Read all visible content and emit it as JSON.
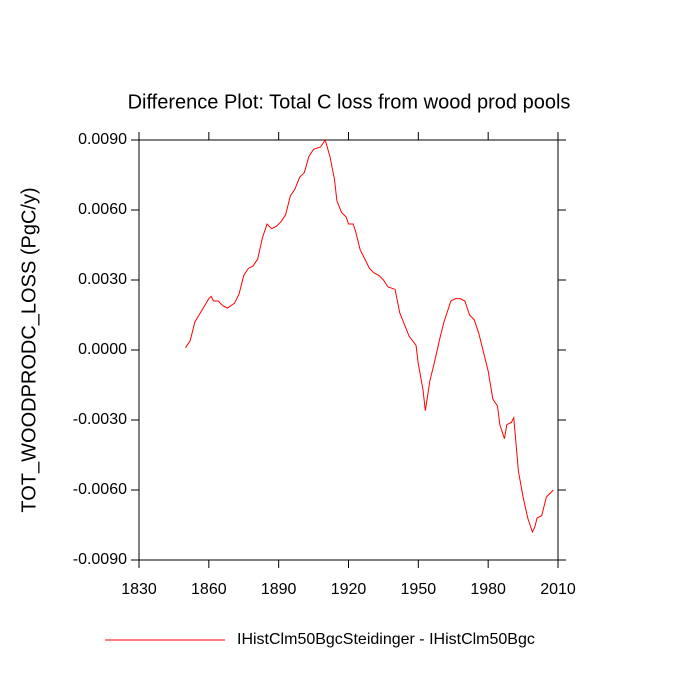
{
  "chart_data": {
    "type": "line",
    "title": "Difference Plot: Total C loss from wood prod pools",
    "y_label": "TOT_WOODPRODC_LOSS  (PgC/y)",
    "x": [
      1850,
      1852,
      1854,
      1857,
      1860,
      1861,
      1862,
      1864,
      1866,
      1868,
      1871,
      1873,
      1875,
      1877,
      1879,
      1881,
      1883,
      1885,
      1887,
      1889,
      1891,
      1893,
      1895,
      1897,
      1899,
      1901,
      1903,
      1905,
      1908,
      1910,
      1912,
      1914,
      1915,
      1917,
      1919,
      1920,
      1922,
      1923,
      1925,
      1927,
      1929,
      1931,
      1933,
      1935,
      1937,
      1940,
      1942,
      1944,
      1946,
      1949,
      1950,
      1952,
      1953,
      1955,
      1957,
      1959,
      1961,
      1964,
      1966,
      1968,
      1970,
      1972,
      1974,
      1976,
      1978,
      1980,
      1982,
      1984,
      1985,
      1987,
      1988,
      1990,
      1991,
      1993,
      1995,
      1997,
      1999,
      2000,
      2001,
      2003,
      2005,
      2008
    ],
    "series": [
      {
        "name": "IHistClm50BgcSteidinger - IHistClm50Bgc",
        "color": "#ff0000",
        "values": [
          0.0001,
          0.0004,
          0.0012,
          0.0017,
          0.0022,
          0.0023,
          0.0021,
          0.0021,
          0.0019,
          0.0018,
          0.002,
          0.0024,
          0.0032,
          0.0035,
          0.0036,
          0.0039,
          0.0048,
          0.0054,
          0.0052,
          0.0053,
          0.0055,
          0.0058,
          0.0066,
          0.0069,
          0.0074,
          0.0076,
          0.0083,
          0.0086,
          0.0087,
          0.009,
          0.0083,
          0.0073,
          0.0064,
          0.0059,
          0.0057,
          0.0054,
          0.0054,
          0.0051,
          0.0043,
          0.0039,
          0.0035,
          0.0033,
          0.0032,
          0.003,
          0.0027,
          0.0026,
          0.0016,
          0.0011,
          0.0006,
          0.0002,
          -0.0006,
          -0.0017,
          -0.0026,
          -0.0013,
          -0.0005,
          0.0004,
          0.0012,
          0.0021,
          0.0022,
          0.0022,
          0.0021,
          0.0015,
          0.0013,
          0.0007,
          -0.0001,
          -0.0009,
          -0.0021,
          -0.0024,
          -0.0032,
          -0.0038,
          -0.0032,
          -0.0031,
          -0.0029,
          -0.0052,
          -0.0063,
          -0.0072,
          -0.0078,
          -0.0076,
          -0.0072,
          -0.0071,
          -0.0063,
          -0.006
        ]
      }
    ],
    "xlim": [
      1830,
      2010
    ],
    "xticks": [
      1830,
      1860,
      1890,
      1920,
      1950,
      1980,
      2010
    ],
    "ylim": [
      -0.009,
      0.009
    ],
    "yticks": [
      {
        "value": 0.009,
        "label": "0.0090"
      },
      {
        "value": 0.006,
        "label": "0.0060"
      },
      {
        "value": 0.003,
        "label": "0.0030"
      },
      {
        "value": 0,
        "label": "0.0000"
      },
      {
        "value": -0.003,
        "label": "-0.0030"
      },
      {
        "value": -0.006,
        "label": "-0.0060"
      },
      {
        "value": -0.009,
        "label": "-0.0090"
      }
    ],
    "grid": false
  }
}
